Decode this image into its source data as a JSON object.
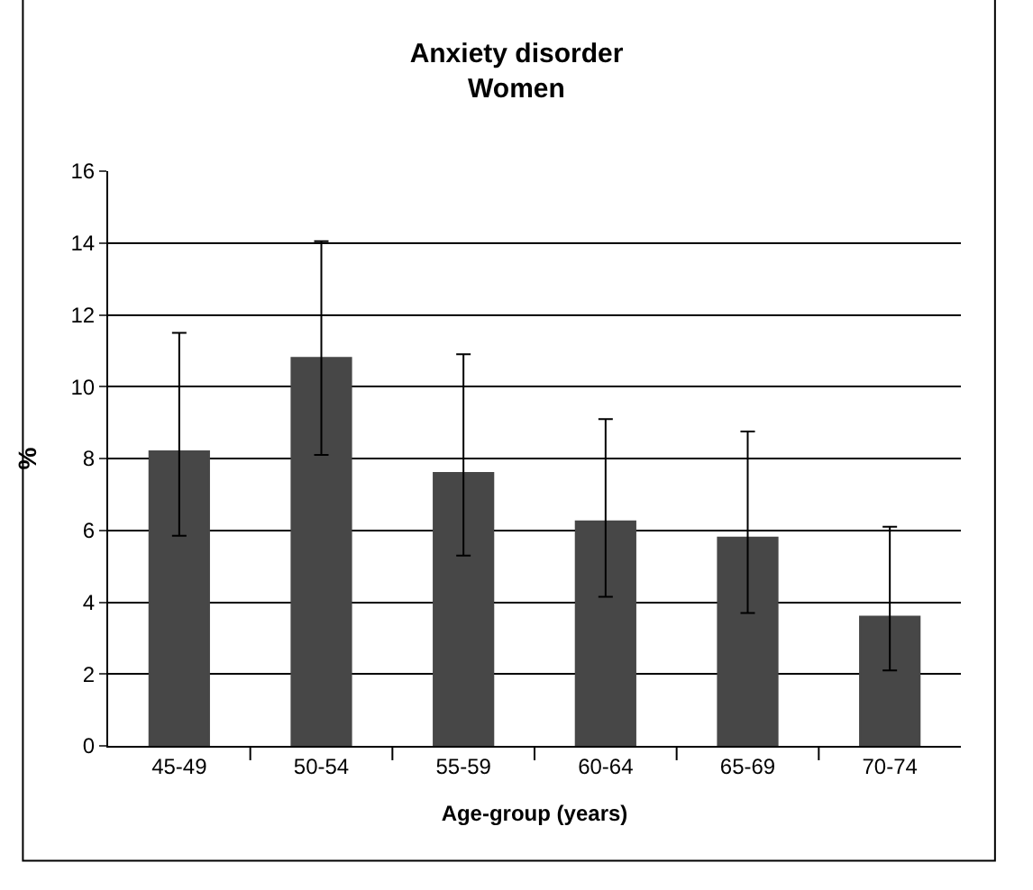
{
  "chart_data": {
    "type": "bar",
    "title": "Anxiety disorder\nWomen",
    "xlabel": "Age-group (years)",
    "ylabel": "%",
    "categories": [
      "45-49",
      "50-54",
      "55-59",
      "60-64",
      "65-69",
      "70-74"
    ],
    "values": [
      8.2,
      10.8,
      7.6,
      6.25,
      5.8,
      3.6
    ],
    "errors": [
      [
        5.85,
        11.5
      ],
      [
        8.1,
        14.05
      ],
      [
        5.3,
        10.9
      ],
      [
        4.15,
        9.1
      ],
      [
        3.7,
        8.75
      ],
      [
        2.1,
        6.1
      ]
    ],
    "color": "#474747",
    "ylim": [
      0,
      16
    ],
    "yticks": [
      0,
      2,
      4,
      6,
      8,
      10,
      12,
      14,
      16
    ],
    "grid": "y"
  }
}
